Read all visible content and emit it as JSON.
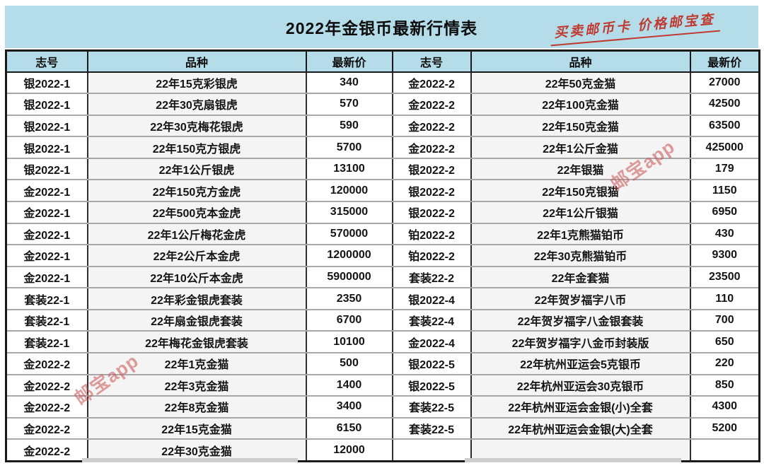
{
  "title": "2022年金银币最新行情表",
  "annotation": {
    "text": "买卖邮币卡 价格邮宝查",
    "color": "#bf3a30"
  },
  "watermark": {
    "text": "邮宝app",
    "color": "#c94f4f"
  },
  "colors": {
    "band_blue": "#b5dde9",
    "header_bg": "#b5dde9",
    "outer_border": "#1a1a1a",
    "column_border": "#2e2e2e",
    "row_line": "#a8a8a8",
    "variety_cell_bg": "#f4f4f4",
    "text": "#141414"
  },
  "chart_data": {
    "type": "table",
    "title": "2022年金银币最新行情表",
    "columns": [
      "志号",
      "品种",
      "最新价",
      "志号",
      "品种",
      "最新价"
    ],
    "rows": [
      [
        "银2022-1",
        "22年15克彩银虎",
        "340",
        "金2022-2",
        "22年50克金猫",
        "27000"
      ],
      [
        "银2022-1",
        "22年30克扇银虎",
        "570",
        "金2022-2",
        "22年100克金猫",
        "42500"
      ],
      [
        "银2022-1",
        "22年30克梅花银虎",
        "590",
        "金2022-2",
        "22年150克金猫",
        "63500"
      ],
      [
        "银2022-1",
        "22年150克方银虎",
        "5700",
        "金2022-2",
        "22年1公斤金猫",
        "425000"
      ],
      [
        "银2022-1",
        "22年1公斤银虎",
        "13100",
        "银2022-2",
        "22年银猫",
        "179"
      ],
      [
        "金2022-1",
        "22年150克方金虎",
        "120000",
        "银2022-2",
        "22年150克银猫",
        "1150"
      ],
      [
        "金2022-1",
        "22年500克本金虎",
        "315000",
        "银2022-2",
        "22年1公斤银猫",
        "6950"
      ],
      [
        "金2022-1",
        "22年1公斤梅花金虎",
        "570000",
        "铂2022-2",
        "22年1克熊猫铂币",
        "430"
      ],
      [
        "金2022-1",
        "22年2公斤本金虎",
        "1200000",
        "铂2022-2",
        "22年30克熊猫铂币",
        "9300"
      ],
      [
        "金2022-1",
        "22年10公斤本金虎",
        "5900000",
        "套装22-2",
        "22年金套猫",
        "23500"
      ],
      [
        "套装22-1",
        "22年彩金银虎套装",
        "2350",
        "银2022-4",
        "22年贺岁福字八币",
        "110"
      ],
      [
        "套装22-1",
        "22年扇金银虎套装",
        "6700",
        "套装22-4",
        "22年贺岁福字八金银套装",
        "700"
      ],
      [
        "套装22-1",
        "22年梅花金银虎套装",
        "10100",
        "金2022-4",
        "22年贺岁福字八金币封装版",
        "650"
      ],
      [
        "金2022-2",
        "22年1克金猫",
        "500",
        "银2022-5",
        "22年杭州亚运会5克银币",
        "220"
      ],
      [
        "金2022-2",
        "22年3克金猫",
        "1400",
        "银2022-5",
        "22年杭州亚运会30克银币",
        "850"
      ],
      [
        "金2022-2",
        "22年8克金猫",
        "3400",
        "套装22-5",
        "22年杭州亚运会金银(小)全套",
        "4300"
      ],
      [
        "金2022-2",
        "22年15克金猫",
        "6150",
        "套装22-5",
        "22年杭州亚运会金银(大)全套",
        "5200"
      ],
      [
        "金2022-2",
        "22年30克金猫",
        "12000",
        "",
        "",
        ""
      ]
    ]
  }
}
